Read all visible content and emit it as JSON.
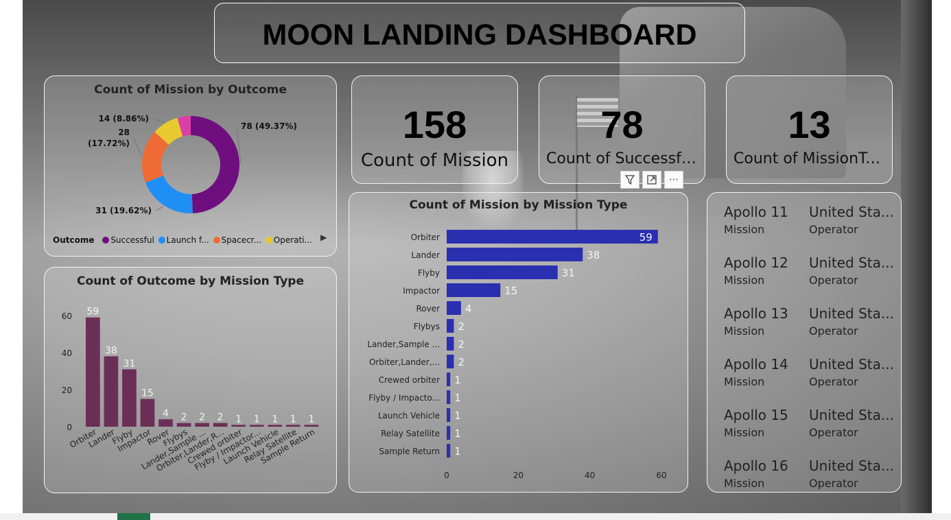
{
  "dashboard": {
    "title": "MOON LANDING DASHBOARD"
  },
  "cards": [
    {
      "value": "158",
      "label": "Count of Mission"
    },
    {
      "value": "78",
      "label": "Count of Successfu..."
    },
    {
      "value": "13",
      "label": "Count of MissionTy..."
    }
  ],
  "visual_toolbar": {
    "filter_icon": "filter-icon",
    "focus_icon": "focus-mode-icon",
    "more_icon": "more-options-icon"
  },
  "missions": [
    {
      "name": "Apollo 11",
      "name_label": "Mission",
      "operator": "United Sta...",
      "operator_label": "Operator"
    },
    {
      "name": "Apollo 12",
      "name_label": "Mission",
      "operator": "United Sta...",
      "operator_label": "Operator"
    },
    {
      "name": "Apollo 13",
      "name_label": "Mission",
      "operator": "United Sta...",
      "operator_label": "Operator"
    },
    {
      "name": "Apollo 14",
      "name_label": "Mission",
      "operator": "United Sta...",
      "operator_label": "Operator"
    },
    {
      "name": "Apollo 15",
      "name_label": "Mission",
      "operator": "United Sta...",
      "operator_label": "Operator"
    },
    {
      "name": "Apollo 16",
      "name_label": "Mission",
      "operator": "United Sta...",
      "operator_label": "Operator"
    }
  ],
  "chart_data": [
    {
      "type": "pie",
      "title": "Count of Mission by Outcome",
      "legend_title": "Outcome",
      "legend_position": "bottom",
      "categories": [
        "Successful",
        "Launch f...",
        "Spacecr...",
        "Operati...",
        ""
      ],
      "values": [
        78,
        31,
        28,
        14,
        7
      ],
      "labels": [
        "78 (49.37%)",
        "31 (19.62%)",
        "28 (17.72%)",
        "14 (8.86%)",
        ""
      ],
      "colors": [
        "#6f0f7f",
        "#1f8ff5",
        "#ef6b35",
        "#e8c92f",
        "#dc3fa4"
      ]
    },
    {
      "type": "bar",
      "title": "Count of Outcome by Mission Type",
      "categories": [
        "Orbiter",
        "Lander",
        "Flyby",
        "Impactor",
        "Rover",
        "Flybys",
        "Lander,Sample ...",
        "Orbiter,Lander,R...",
        "Crewed orbiter",
        "Flyby / Impactor...",
        "Launch Vehicle",
        "Relay Satellite",
        "Sample Return"
      ],
      "values": [
        59,
        38,
        31,
        15,
        4,
        2,
        2,
        2,
        1,
        1,
        1,
        1,
        1
      ],
      "ylim": [
        0,
        60
      ],
      "yticks": [
        "0",
        "20",
        "40",
        "60"
      ],
      "color": "#6b2f57"
    },
    {
      "type": "bar",
      "orientation": "horizontal",
      "title": "Count of Mission by Mission Type",
      "categories": [
        "Orbiter",
        "Lander",
        "Flyby",
        "Impactor",
        "Rover",
        "Flybys",
        "Lander,Sample ...",
        "Orbiter,Lander,...",
        "Crewed orbiter",
        "Flyby / Impacto...",
        "Launch Vehicle",
        "Relay Satellite",
        "Sample Return"
      ],
      "values": [
        59,
        38,
        31,
        15,
        4,
        2,
        2,
        2,
        1,
        1,
        1,
        1,
        1
      ],
      "xlim": [
        0,
        60
      ],
      "xticks": [
        "0",
        "20",
        "40",
        "60"
      ],
      "color": "#2a2fb0"
    }
  ]
}
